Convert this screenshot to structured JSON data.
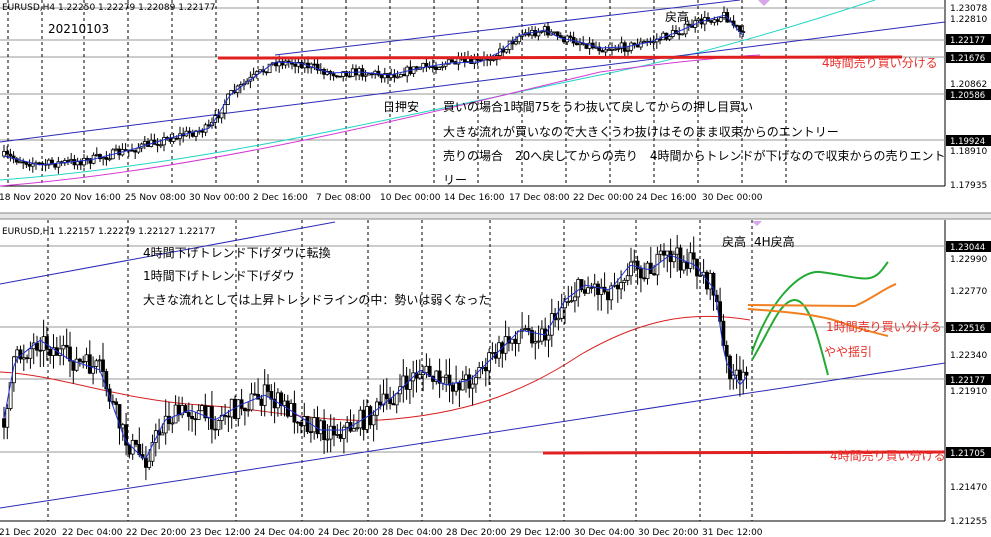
{
  "colors": {
    "candle": "#000000",
    "ma_short": "#1d2fd6",
    "ma_mid_h4": "#1fd7c3",
    "ma_long_h4": "#d63ad6",
    "ma_long_h1": "#d82020",
    "channel": "#2a2ab8",
    "level_line": "#e02020",
    "note_red": "#e8302a",
    "green_scenario": "#22aa33",
    "orange_scenario": "#f08020"
  },
  "top_panel": {
    "header": "EURUSD,H4  1.22250 1.22279 1.22089 1.22177",
    "date_label": "20210103",
    "annotations": {
      "nichioshi": "日押安",
      "modori": "戻高",
      "buy_text": "買いの場合1時間75をうわ抜いて戻してからの押し目買い",
      "trend_text": "大きな流れが買いなので大きくうわ抜けはそのまま収束からのエントリー",
      "sell_text": "売りの場合　20へ戻してからの売り　4時間からトレンドが下げなので収束からの売りエント",
      "sell_text_cont": "リー",
      "level_note": "4時間売り買い分ける"
    },
    "price_labels": [
      "1.23078",
      "1.22810",
      "1.21676",
      "1.20862",
      "1.20586",
      "1.19924",
      "1.18910",
      "1.17935"
    ],
    "current_price": "1.22177",
    "time_labels": [
      "18 Nov 2020",
      "20 Nov 16:00",
      "25 Nov 08:00",
      "30 Nov 00:00",
      "2 Dec 16:00",
      "7 Dec 08:00",
      "10 Dec 00:00",
      "14 Dec 16:00",
      "17 Dec 08:00",
      "22 Dec 00:00",
      "24 Dec 16:00",
      "30 Dec 00:00"
    ]
  },
  "bottom_panel": {
    "header": "EURUSD,H1  1.22157 1.22279 1.22127 1.22177",
    "annotations": {
      "line1": "4時間下げトレンド下げダウに転換",
      "line2": "1時間下げトレンド下げダウ",
      "line3": "大きな流れとしては上昇トレンドラインの中：勢いは弱くなった",
      "modori": "戻高",
      "modori_h4": "4H戻高",
      "level_note_1": "1時間売り買い分ける",
      "level_note_2": "4時間売り買い分ける",
      "yaya": "やや揺引"
    },
    "price_labels": [
      "1.23044",
      "1.22990",
      "1.22770",
      "1.22516",
      "1.22340",
      "1.22177",
      "1.21910",
      "1.21705",
      "1.21470",
      "1.21255"
    ],
    "current_price": "1.22177",
    "time_labels": [
      "21 Dec 2020",
      "22 Dec 04:00",
      "22 Dec 20:00",
      "23 Dec 12:00",
      "24 Dec 04:00",
      "24 Dec 20:00",
      "28 Dec 04:00",
      "28 Dec 20:00",
      "29 Dec 12:00",
      "30 Dec 04:00",
      "30 Dec 20:00",
      "31 Dec 12:00"
    ]
  }
}
